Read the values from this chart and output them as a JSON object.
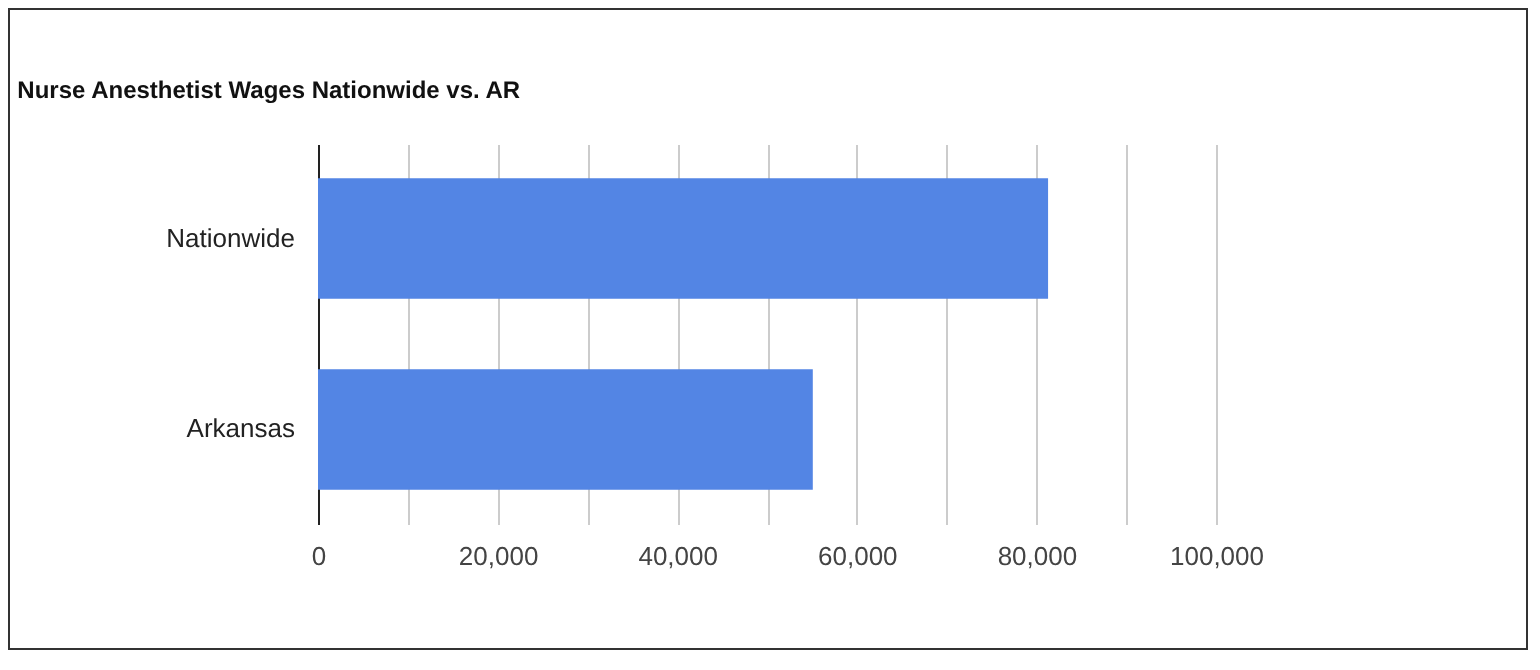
{
  "chart_data": {
    "type": "bar",
    "orientation": "horizontal",
    "title": "Nurse Anesthetist Wages Nationwide vs. AR",
    "categories": [
      "Nationwide",
      "Arkansas"
    ],
    "values": [
      81300,
      55100
    ],
    "color": "#5385e4",
    "xlim": [
      0,
      100000
    ],
    "xticks": [
      0,
      {
        "value": 10000,
        "label": null
      },
      {
        "value": 20000,
        "label": "20,000"
      },
      {
        "value": 30000,
        "label": null
      },
      {
        "value": 40000,
        "label": "40,000"
      },
      {
        "value": 50000,
        "label": null
      },
      {
        "value": 60000,
        "label": "60,000"
      },
      {
        "value": 70000,
        "label": null
      },
      {
        "value": 80000,
        "label": "80,000"
      },
      {
        "value": 90000,
        "label": null
      },
      {
        "value": 100000,
        "label": "100,000"
      }
    ],
    "grid": true
  }
}
